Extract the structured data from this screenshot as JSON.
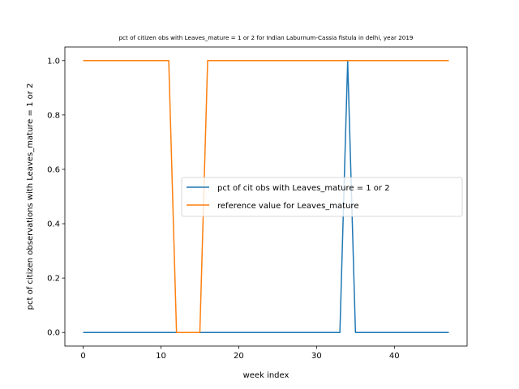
{
  "chart_data": {
    "type": "line",
    "title": "pct of citizen obs with Leaves_mature = 1 or 2 for Indian Laburnum-Cassia fistula in delhi, year 2019",
    "xlabel": "week index",
    "ylabel": "pct of citizen observations with Leaves_mature = 1 or 2",
    "xlim": [
      -2.35,
      49.35
    ],
    "ylim": [
      -0.05,
      1.05
    ],
    "xticks": [
      0,
      10,
      20,
      30,
      40
    ],
    "yticks": [
      0.0,
      0.2,
      0.4,
      0.6,
      0.8,
      1.0
    ],
    "xtick_labels": [
      "0",
      "10",
      "20",
      "30",
      "40"
    ],
    "ytick_labels": [
      "0.0",
      "0.2",
      "0.4",
      "0.6",
      "0.8",
      "1.0"
    ],
    "grid": false,
    "legend_position": "center-right",
    "series": [
      {
        "name": "pct of cit obs with Leaves_mature = 1 or 2",
        "color": "#1f77b4",
        "x": [
          0,
          1,
          2,
          3,
          4,
          5,
          6,
          7,
          8,
          9,
          10,
          11,
          12,
          13,
          14,
          15,
          16,
          17,
          18,
          19,
          20,
          21,
          22,
          23,
          24,
          25,
          26,
          27,
          28,
          29,
          30,
          31,
          32,
          33,
          34,
          35,
          36,
          37,
          38,
          39,
          40,
          41,
          42,
          43,
          44,
          45,
          46,
          47
        ],
        "values": [
          0,
          0,
          0,
          0,
          0,
          0,
          0,
          0,
          0,
          0,
          0,
          0,
          0,
          0,
          0,
          0,
          0,
          0,
          0,
          0,
          0,
          0,
          0,
          0,
          0,
          0,
          0,
          0,
          0,
          0,
          0,
          0,
          0,
          0,
          1,
          0,
          0,
          0,
          0,
          0,
          0,
          0,
          0,
          0,
          0,
          0,
          0,
          0
        ]
      },
      {
        "name": "reference value for Leaves_mature",
        "color": "#ff7f0e",
        "x": [
          0,
          1,
          2,
          3,
          4,
          5,
          6,
          7,
          8,
          9,
          10,
          11,
          12,
          13,
          14,
          15,
          16,
          17,
          18,
          19,
          20,
          21,
          22,
          23,
          24,
          25,
          26,
          27,
          28,
          29,
          30,
          31,
          32,
          33,
          34,
          35,
          36,
          37,
          38,
          39,
          40,
          41,
          42,
          43,
          44,
          45,
          46,
          47
        ],
        "values": [
          1,
          1,
          1,
          1,
          1,
          1,
          1,
          1,
          1,
          1,
          1,
          1,
          0,
          0,
          0,
          0,
          1,
          1,
          1,
          1,
          1,
          1,
          1,
          1,
          1,
          1,
          1,
          1,
          1,
          1,
          1,
          1,
          1,
          1,
          1,
          1,
          1,
          1,
          1,
          1,
          1,
          1,
          1,
          1,
          1,
          1,
          1,
          1
        ]
      }
    ]
  }
}
